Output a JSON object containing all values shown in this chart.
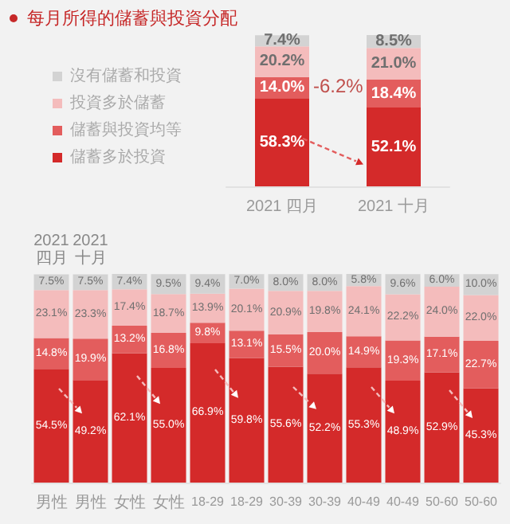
{
  "chart_data": [
    {
      "type": "bar",
      "title": "每月所得的儲蓄與投資分配",
      "categories": [
        "2021 四月",
        "2021 十月"
      ],
      "stacked": true,
      "legend": "left",
      "annotations": [
        "-6.2%"
      ],
      "series": [
        {
          "name": "儲蓄多於投資",
          "color": "#d42a2a",
          "values": [
            58.3,
            52.1
          ],
          "value_labels": [
            "58.3%",
            "52.1%"
          ]
        },
        {
          "name": "儲蓄與投資均等",
          "color": "#e35d5d",
          "values": [
            14.0,
            18.4
          ],
          "value_labels": [
            "14.0%",
            "18.4%"
          ]
        },
        {
          "name": "投資多於儲蓄",
          "color": "#f4bcbc",
          "values": [
            20.2,
            21.0
          ],
          "value_labels": [
            "20.2%",
            "21.0%"
          ]
        },
        {
          "name": "沒有儲蓄和投資",
          "color": "#d3d3d3",
          "values": [
            7.4,
            8.5
          ],
          "value_labels": [
            "7.4%",
            "8.5%"
          ]
        }
      ]
    },
    {
      "type": "bar",
      "categories": [
        "男性",
        "男性",
        "女性",
        "女性",
        "18-29",
        "18-29",
        "30-39",
        "30-39",
        "40-49",
        "40-49",
        "50-60",
        "50-60"
      ],
      "stacked": true,
      "legend": false,
      "annotations": [
        "2021 四月",
        "2021 十月"
      ],
      "series": [
        {
          "color": "#d42a2a",
          "values": [
            54.5,
            49.2,
            62.1,
            55.0,
            66.9,
            59.8,
            55.6,
            52.2,
            55.3,
            48.9,
            52.9,
            45.3
          ],
          "value_labels": [
            "54.5%",
            "49.2%",
            "62.1%",
            "55.0%",
            "66.9%",
            "59.8%",
            "55.6%",
            "52.2%",
            "55.3%",
            "48.9%",
            "52.9%",
            "45.3%"
          ]
        },
        {
          "color": "#e35d5d",
          "values": [
            14.8,
            19.9,
            13.2,
            16.8,
            9.8,
            13.1,
            15.5,
            20.0,
            14.9,
            19.3,
            17.1,
            22.7
          ],
          "value_labels": [
            "14.8%",
            "19.9%",
            "13.2%",
            "16.8%",
            "9.8%",
            "13.1%",
            "15.5%",
            "20.0%",
            "14.9%",
            "19.3%",
            "17.1%",
            "22.7%"
          ]
        },
        {
          "color": "#f4bcbc",
          "values": [
            23.1,
            23.3,
            17.4,
            18.7,
            13.9,
            20.1,
            20.9,
            19.8,
            24.1,
            22.2,
            24.0,
            22.0
          ],
          "value_labels": [
            "23.1%",
            "23.3%",
            "17.4%",
            "18.7%",
            "13.9%",
            "20.1%",
            "20.9%",
            "19.8%",
            "24.1%",
            "22.2%",
            "24.0%",
            "22.0%"
          ]
        },
        {
          "color": "#d3d3d3",
          "values": [
            7.5,
            7.5,
            7.4,
            9.5,
            9.4,
            7.0,
            8.0,
            8.0,
            5.8,
            9.6,
            6.0,
            10.0
          ],
          "value_labels": [
            "7.5%",
            "7.5%",
            "7.4%",
            "9.5%",
            "9.4%",
            "7.0%",
            "8.0%",
            "8.0%",
            "5.8%",
            "9.6%",
            "6.0%",
            "10.0%"
          ]
        }
      ]
    }
  ]
}
